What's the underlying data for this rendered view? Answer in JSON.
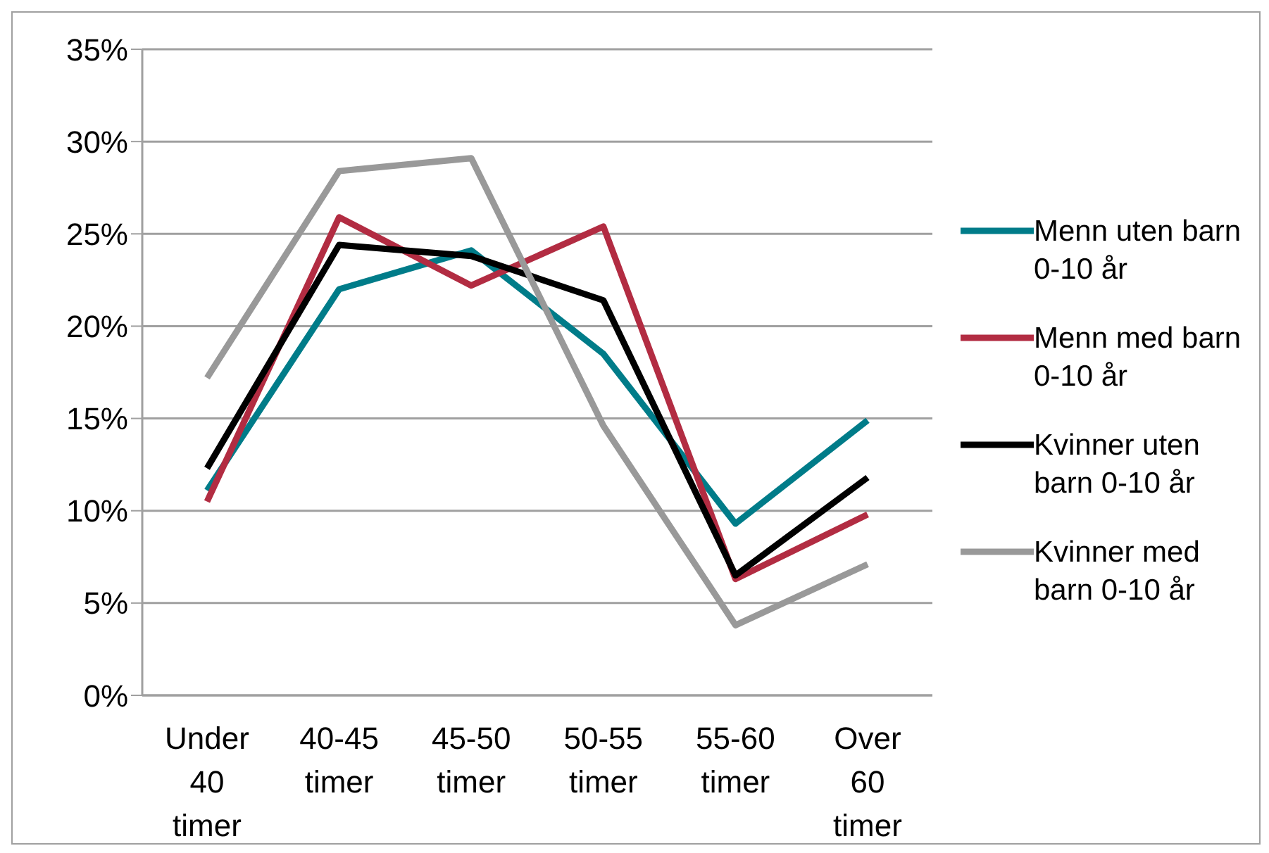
{
  "chart_data": {
    "type": "line",
    "categories": [
      "Under 40 timer",
      "40-45 timer",
      "45-50 timer",
      "50-55 timer",
      "55-60 timer",
      "Over 60 timer"
    ],
    "series": [
      {
        "name": "Menn uten barn 0-10 år",
        "color": "#007c89",
        "values": [
          11.1,
          22.0,
          24.1,
          18.5,
          9.3,
          14.9
        ]
      },
      {
        "name": "Menn med barn 0-10 år",
        "color": "#b22c42",
        "values": [
          10.5,
          25.9,
          22.2,
          25.4,
          6.3,
          9.8
        ]
      },
      {
        "name": "Kvinner uten barn 0-10 år",
        "color": "#000000",
        "values": [
          12.3,
          24.4,
          23.8,
          21.4,
          6.5,
          11.8
        ]
      },
      {
        "name": "Kvinner med barn 0-10 år",
        "color": "#999999",
        "values": [
          17.2,
          28.4,
          29.1,
          14.6,
          3.8,
          7.1
        ]
      }
    ],
    "ylim": [
      0,
      35
    ],
    "yticks": [
      {
        "value": 0,
        "label": "0%"
      },
      {
        "value": 5,
        "label": "5%"
      },
      {
        "value": 10,
        "label": "10%"
      },
      {
        "value": 15,
        "label": "15%"
      },
      {
        "value": 20,
        "label": "20%"
      },
      {
        "value": 25,
        "label": "25%"
      },
      {
        "value": 30,
        "label": "30%"
      },
      {
        "value": 35,
        "label": "35%"
      }
    ],
    "grid": "y",
    "legend": "right",
    "marker": "none",
    "line_style": "solid"
  }
}
